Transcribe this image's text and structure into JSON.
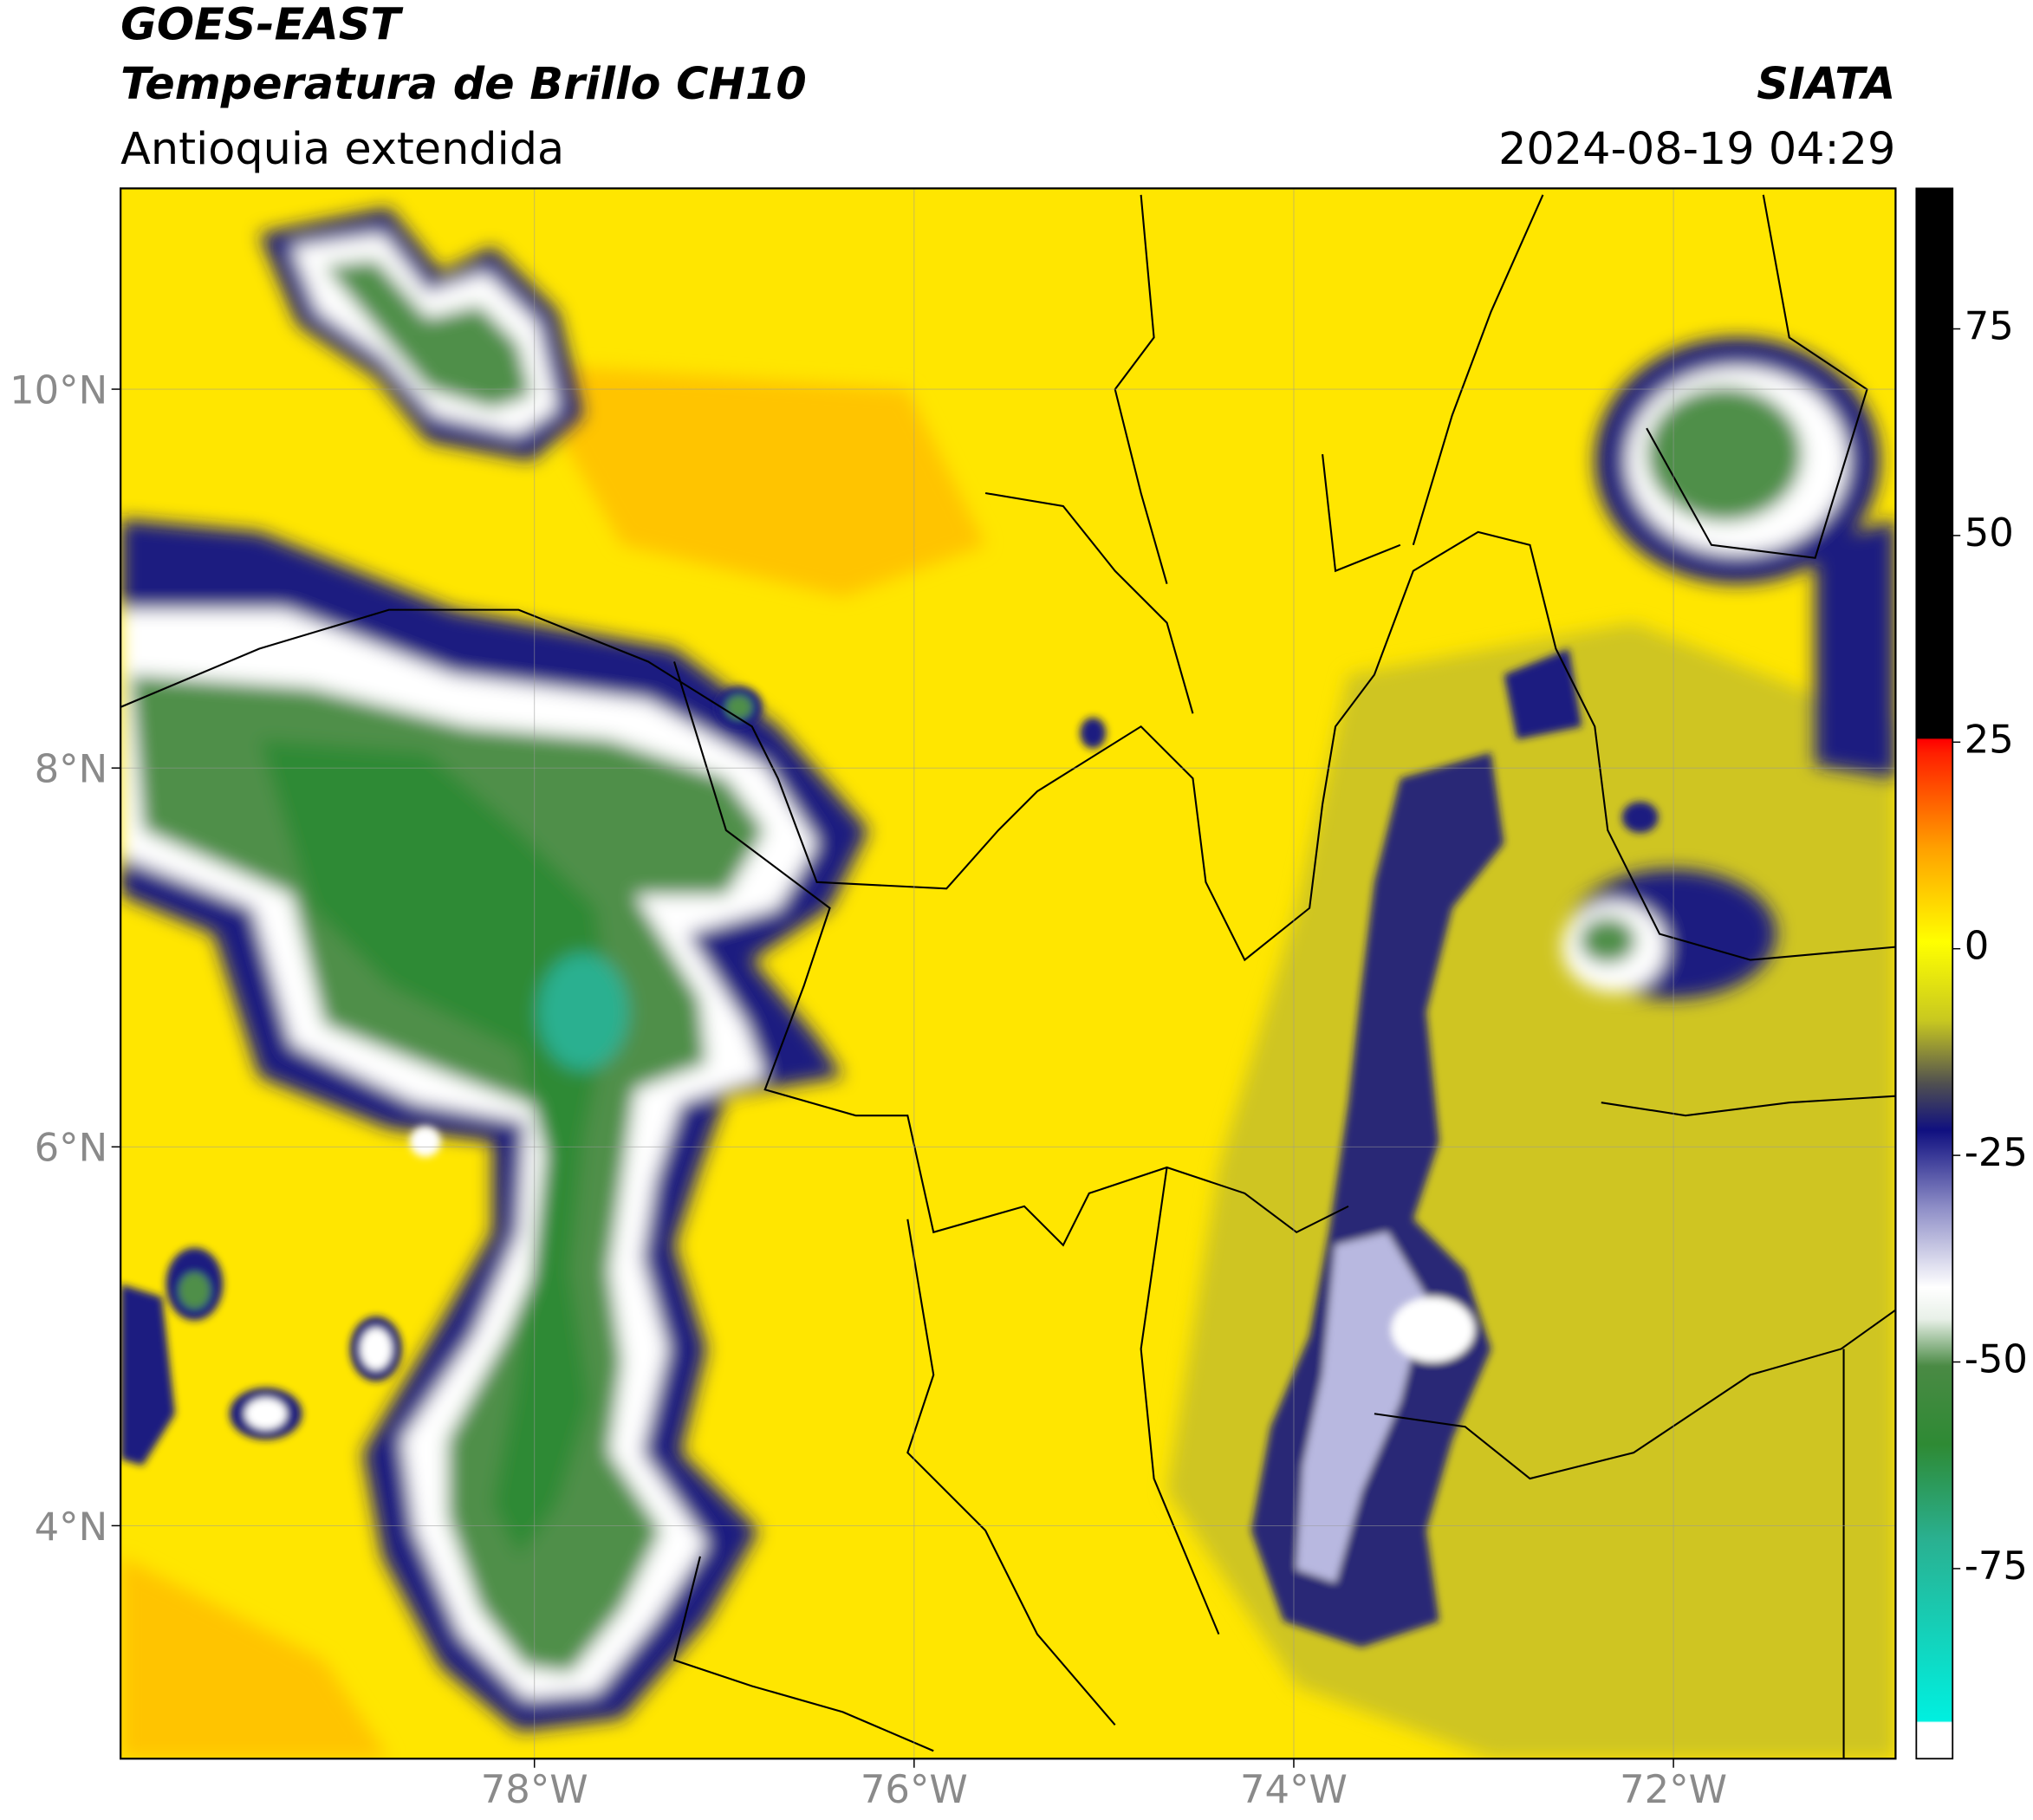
{
  "header": {
    "title": "GOES-EAST",
    "subtitle": "Temperatura de Brillo CH10",
    "region": "Antioquia extendida",
    "source": "SIATA",
    "datetime": "2024-08-19 04:29"
  },
  "map": {
    "xlim": [
      -80.18,
      -70.83
    ],
    "ylim": [
      2.77,
      11.06
    ],
    "xticks": [
      {
        "value": -78,
        "label": "78°W"
      },
      {
        "value": -76,
        "label": "76°W"
      },
      {
        "value": -74,
        "label": "74°W"
      },
      {
        "value": -72,
        "label": "72°W"
      }
    ],
    "yticks": [
      {
        "value": 10,
        "label": "10°N"
      },
      {
        "value": 8,
        "label": "8°N"
      },
      {
        "value": 6,
        "label": "6°N"
      },
      {
        "value": 4,
        "label": "4°N"
      }
    ],
    "grid": true
  },
  "colorbar": {
    "lim": [
      -98,
      92
    ],
    "ticks": [
      75,
      50,
      25,
      0,
      -25,
      -50,
      -75
    ]
  }
}
